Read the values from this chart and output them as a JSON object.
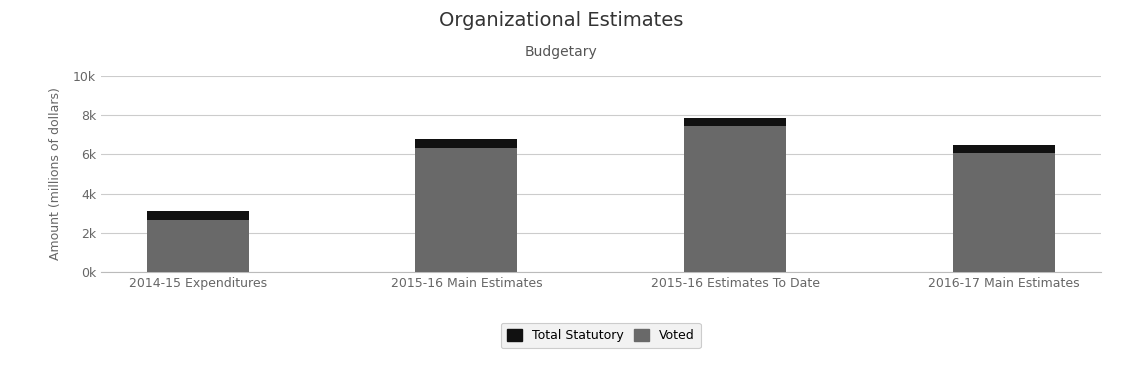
{
  "title": "Organizational Estimates",
  "subtitle": "Budgetary",
  "categories": [
    "2014-15 Expenditures",
    "2015-16 Main Estimates",
    "2015-16 Estimates To Date",
    "2016-17 Main Estimates"
  ],
  "voted": [
    2650,
    6300,
    7450,
    6050
  ],
  "statutory": [
    3100,
    6750,
    7850,
    6450
  ],
  "voted_color": "#696969",
  "statutory_color": "#111111",
  "ylabel": "Amount (millions of dollars)",
  "ylim": [
    0,
    10000
  ],
  "yticks": [
    0,
    2000,
    4000,
    6000,
    8000,
    10000
  ],
  "ytick_labels": [
    "0k",
    "2k",
    "4k",
    "6k",
    "8k",
    "10k"
  ],
  "background_color": "#ffffff",
  "plot_bg_color": "#f5f5f5",
  "legend_labels": [
    "Total Statutory",
    "Voted"
  ],
  "title_fontsize": 14,
  "subtitle_fontsize": 10,
  "bar_width": 0.38
}
